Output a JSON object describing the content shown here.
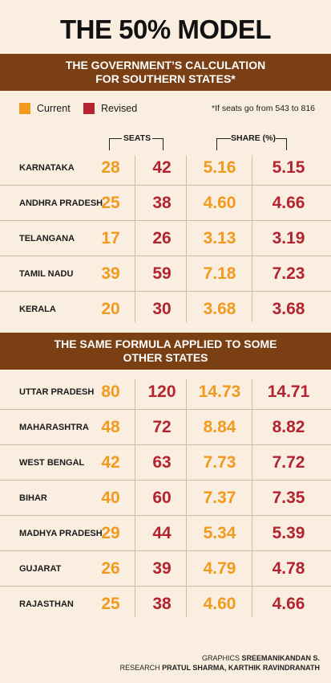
{
  "title": "THE 50% MODEL",
  "banner1": [
    "THE GOVERNMENT’S CALCULATION",
    "FOR SOUTHERN STATES*"
  ],
  "banner2": [
    "THE SAME FORMULA APPLIED TO SOME",
    "OTHER STATES"
  ],
  "legend": {
    "current_label": "Current",
    "revised_label": "Revised",
    "footnote": "*If seats go from 543 to 816"
  },
  "colors": {
    "current": "#f29a1d",
    "revised": "#b32430",
    "banner": "#7a3f12",
    "background": "#faeee0"
  },
  "column_headers": {
    "seats": "SEATS",
    "share": "SHARE (%)"
  },
  "credits": {
    "graphics_label": "GRAPHICS",
    "graphics_name": "SREEMANIKANDAN S.",
    "research_label": "RESEARCH",
    "research_name": "PRATUL SHARMA, KARTHIK RAVINDRANATH"
  },
  "chart_data": {
    "type": "table",
    "title": "THE 50% MODEL",
    "columns": [
      "Seats (Current)",
      "Seats (Revised)",
      "Share % (Current)",
      "Share % (Revised)"
    ],
    "sections": [
      {
        "name": "THE GOVERNMENT’S CALCULATION FOR SOUTHERN STATES*",
        "rows": [
          {
            "state": "KARNATAKA",
            "values": [
              "28",
              "42",
              "5.16",
              "5.15"
            ]
          },
          {
            "state": "ANDHRA PRADESH",
            "values": [
              "25",
              "38",
              "4.60",
              "4.66"
            ]
          },
          {
            "state": "TELANGANA",
            "values": [
              "17",
              "26",
              "3.13",
              "3.19"
            ]
          },
          {
            "state": "TAMIL NADU",
            "values": [
              "39",
              "59",
              "7.18",
              "7.23"
            ]
          },
          {
            "state": "KERALA",
            "values": [
              "20",
              "30",
              "3.68",
              "3.68"
            ]
          }
        ]
      },
      {
        "name": "THE SAME FORMULA APPLIED TO SOME OTHER STATES",
        "rows": [
          {
            "state": "UTTAR PRADESH",
            "values": [
              "80",
              "120",
              "14.73",
              "14.71"
            ]
          },
          {
            "state": "MAHARASHTRA",
            "values": [
              "48",
              "72",
              "8.84",
              "8.82"
            ]
          },
          {
            "state": "WEST BENGAL",
            "values": [
              "42",
              "63",
              "7.73",
              "7.72"
            ]
          },
          {
            "state": "BIHAR",
            "values": [
              "40",
              "60",
              "7.37",
              "7.35"
            ]
          },
          {
            "state": "MADHYA PRADESH",
            "values": [
              "29",
              "44",
              "5.34",
              "5.39"
            ]
          },
          {
            "state": "GUJARAT",
            "values": [
              "26",
              "39",
              "4.79",
              "4.78"
            ]
          },
          {
            "state": "RAJASTHAN",
            "values": [
              "25",
              "38",
              "4.60",
              "4.66"
            ]
          }
        ]
      }
    ]
  }
}
